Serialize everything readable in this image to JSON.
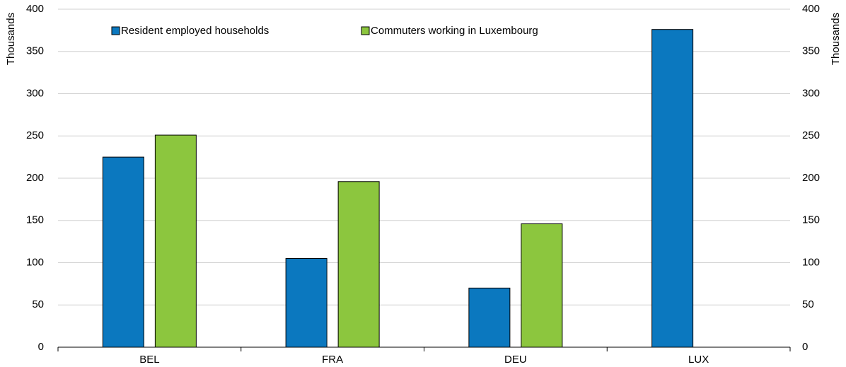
{
  "chart_data": {
    "type": "bar",
    "y_label": "Thousands",
    "y2_label": "Thousands",
    "categories": [
      "BEL",
      "FRA",
      "DEU",
      "LUX"
    ],
    "series": [
      {
        "name": "Resident employed households",
        "color": "#0b78bf",
        "values": [
          225,
          105,
          70,
          376
        ]
      },
      {
        "name": "Commuters working in Luxembourg",
        "color": "#8cc63e",
        "values": [
          251,
          196,
          146,
          null
        ]
      }
    ],
    "ylim": [
      0,
      400
    ],
    "yticks": [
      0,
      50,
      100,
      150,
      200,
      250,
      300,
      350,
      400
    ],
    "y2lim": [
      0,
      400
    ],
    "y2ticks": [
      0,
      50,
      100,
      150,
      200,
      250,
      300,
      350,
      400
    ],
    "grid": true
  }
}
